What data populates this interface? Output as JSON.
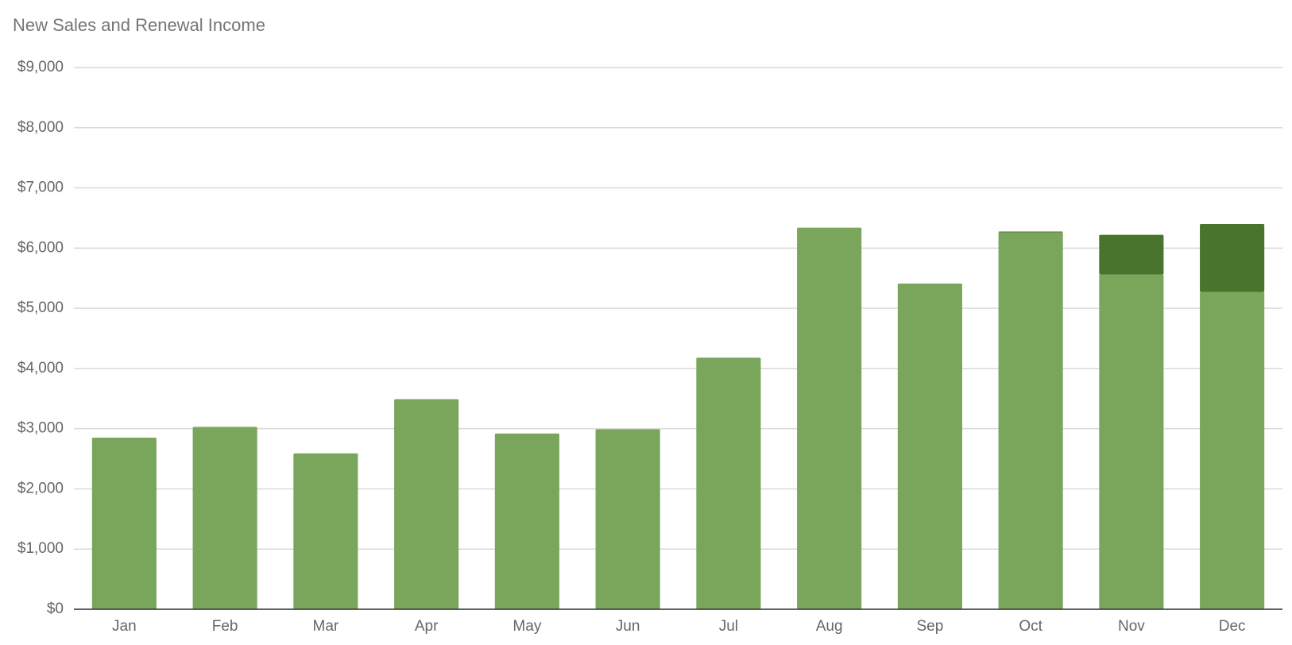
{
  "chart_data": {
    "type": "stacked-bar",
    "title": "New Sales and Renewal Income",
    "categories": [
      "Jan",
      "Feb",
      "Mar",
      "Apr",
      "May",
      "Jun",
      "Jul",
      "Aug",
      "Sep",
      "Oct",
      "Nov",
      "Dec"
    ],
    "series": [
      {
        "color": "#7aa65c",
        "values": [
          2850,
          3030,
          2590,
          3490,
          2920,
          2990,
          4180,
          6340,
          5410,
          6260,
          5560,
          5270
        ]
      },
      {
        "color": "#48742c",
        "values": [
          0,
          0,
          0,
          0,
          0,
          0,
          0,
          0,
          0,
          15,
          660,
          1130
        ]
      }
    ],
    "ylim": [
      0,
      9000
    ],
    "yticks": [
      {
        "value": 0,
        "label": "$0"
      },
      {
        "value": 1000,
        "label": "$1,000"
      },
      {
        "value": 2000,
        "label": "$2,000"
      },
      {
        "value": 3000,
        "label": "$3,000"
      },
      {
        "value": 4000,
        "label": "$4,000"
      },
      {
        "value": 5000,
        "label": "$5,000"
      },
      {
        "value": 6000,
        "label": "$6,000"
      },
      {
        "value": 7000,
        "label": "$7,000"
      },
      {
        "value": 8000,
        "label": "$8,000"
      },
      {
        "value": 9000,
        "label": "$9,000"
      }
    ],
    "grid": true
  }
}
